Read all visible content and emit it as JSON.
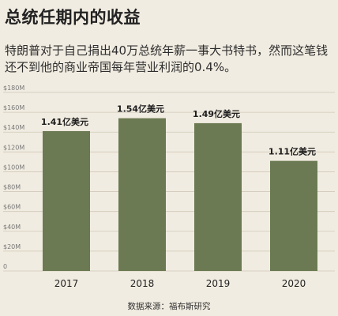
{
  "header": {
    "title": "总统任期内的收益",
    "subtitle": "特朗普对于自己捐出40万总统年薪一事大书特书，然而这笔钱还不到他的商业帝国每年营业利润的0.4%。"
  },
  "footer": {
    "source": "数据来源：福布斯研究"
  },
  "colors": {
    "background": "#f1ece1",
    "bar": "#6b7a52"
  },
  "chart_data": {
    "type": "bar",
    "categories": [
      "2017",
      "2018",
      "2019",
      "2020"
    ],
    "values": [
      141,
      154,
      149,
      111
    ],
    "data_labels": [
      "1.41亿美元",
      "1.54亿美元",
      "1.49亿美元",
      "1.11亿美元"
    ],
    "y_ticks": [
      "0",
      "$20M",
      "$40M",
      "$60M",
      "$80M",
      "$100M",
      "$120M",
      "$140M",
      "$160M",
      "$180M"
    ],
    "ylim": [
      0,
      180
    ],
    "grid": true
  }
}
